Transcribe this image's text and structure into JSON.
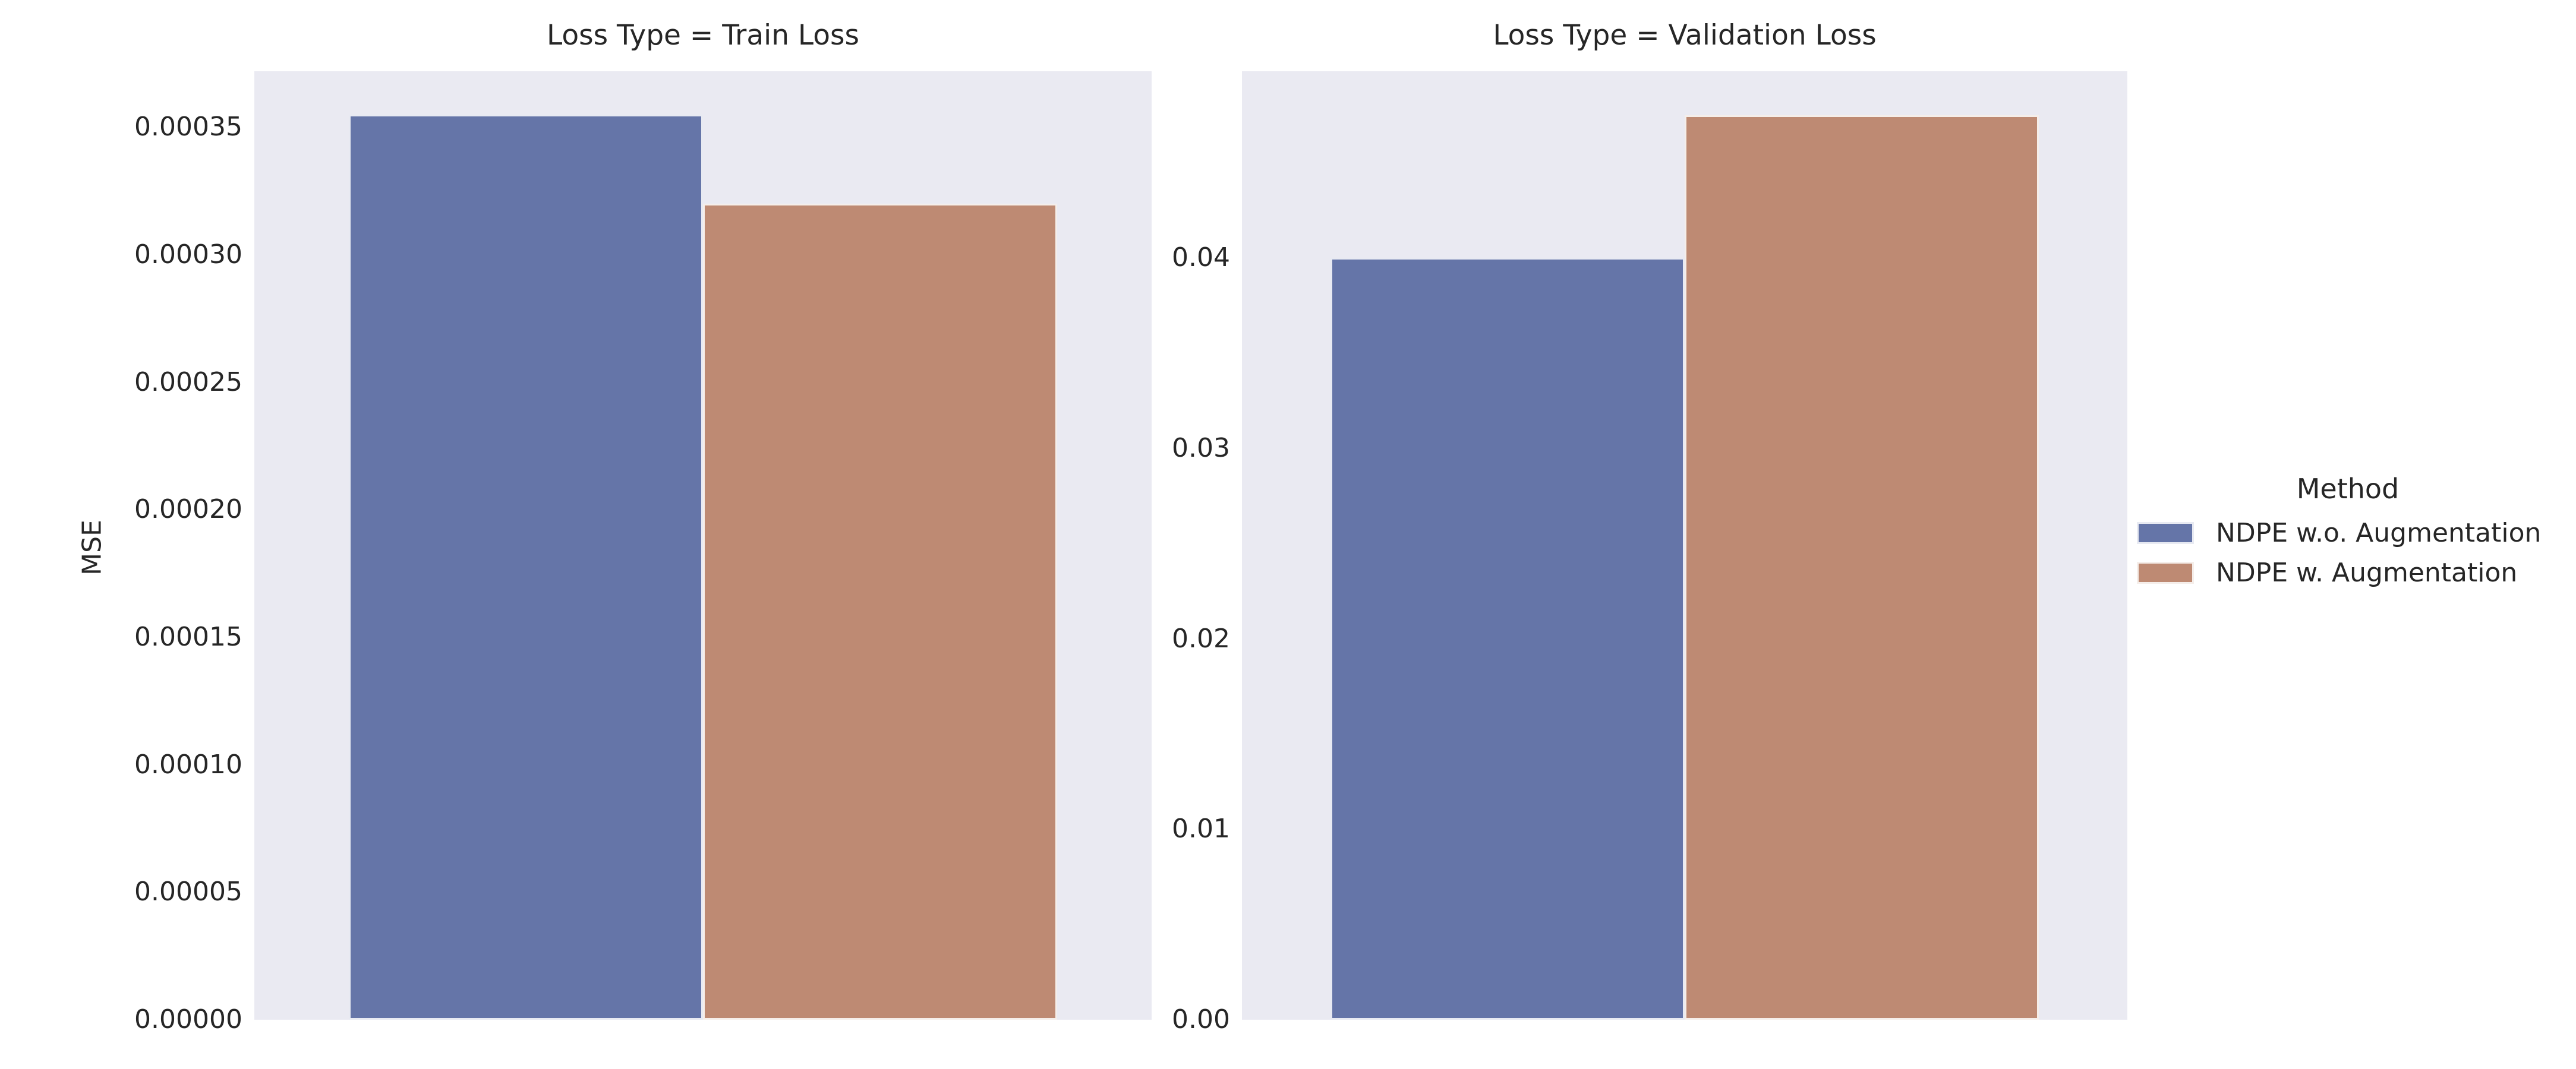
{
  "chart_data": {
    "type": "bar",
    "ylabel": "MSE",
    "grid": false,
    "axes_background": "#EAEAF2",
    "text_color": "#262626",
    "facets": [
      {
        "title": "Loss Type = Train Loss",
        "ylim": [
          0,
          0.000372
        ],
        "ytick_values": [
          0.0,
          5e-05,
          0.0001,
          0.00015,
          0.0002,
          0.00025,
          0.0003,
          0.00035
        ],
        "ytick_labels": [
          "0.00000",
          "0.00005",
          "0.00010",
          "0.00015",
          "0.00020",
          "0.00025",
          "0.00030",
          "0.00035"
        ],
        "bars": [
          {
            "method": "NDPE w.o. Augmentation",
            "value": 0.000355
          },
          {
            "method": "NDPE w. Augmentation",
            "value": 0.00032
          }
        ]
      },
      {
        "title": "Loss Type = Validation Loss",
        "ylim": [
          0,
          0.0498
        ],
        "ytick_values": [
          0.0,
          0.01,
          0.02,
          0.03,
          0.04
        ],
        "ytick_labels": [
          "0.00",
          "0.01",
          "0.02",
          "0.03",
          "0.04"
        ],
        "bars": [
          {
            "method": "NDPE w.o. Augmentation",
            "value": 0.04
          },
          {
            "method": "NDPE w. Augmentation",
            "value": 0.0475
          }
        ]
      }
    ],
    "legend": {
      "title": "Method",
      "entries": [
        {
          "label": "NDPE w.o. Augmentation",
          "color": "#6575A8"
        },
        {
          "label": "NDPE w. Augmentation",
          "color": "#BE8A73"
        }
      ]
    }
  }
}
